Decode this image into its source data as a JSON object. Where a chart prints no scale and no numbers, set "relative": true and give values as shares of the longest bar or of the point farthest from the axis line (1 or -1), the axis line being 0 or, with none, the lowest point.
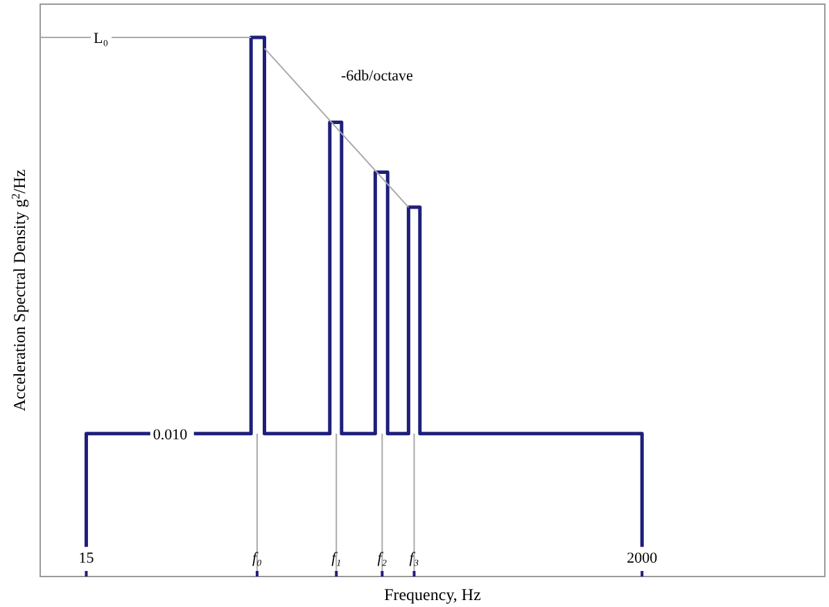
{
  "chart_data": {
    "type": "line",
    "relative": true,
    "log": "x",
    "xlabel": "Frequency, Hz",
    "ylabel": "Acceleration Spectral Density g$^{2}$/Hz",
    "xlim": [
      10,
      10000
    ],
    "xticks": [
      15,
      {
        "value": 67.5,
        "label": "f₀"
      },
      {
        "value": 135.6,
        "label": "f₁"
      },
      {
        "value": 203,
        "label": "f₂"
      },
      {
        "value": 269,
        "label": "f₃"
      },
      2000
    ],
    "series": [
      {
        "color": "#1f1f7a",
        "x": [
          15,
          15,
          64,
          64,
          72,
          72,
          128,
          128,
          142,
          142,
          191,
          191,
          213,
          213,
          256,
          256,
          283,
          283,
          2000,
          2000
        ],
        "values": [
          0.055,
          0.265,
          0.265,
          1,
          1,
          0.265,
          0.265,
          0.8425,
          0.8425,
          0.265,
          0.265,
          0.75,
          0.75,
          0.265,
          0.265,
          0.685,
          0.685,
          0.265,
          0.265,
          0.055
        ]
      },
      {
        "color": "#aaaaaa",
        "x": [
          10,
          64
        ],
        "values": [
          1,
          1
        ]
      },
      {
        "color": "#aaaaaa",
        "x": [
          72,
          256
        ],
        "values": [
          0.98,
          0.685
        ]
      },
      {
        "color": "#aaaaaa",
        "x": [
          67.5,
          67.5
        ],
        "values": [
          0,
          0.265
        ]
      },
      {
        "color": "#aaaaaa",
        "x": [
          135.6,
          135.6
        ],
        "values": [
          0,
          0.265
        ]
      },
      {
        "color": "#aaaaaa",
        "x": [
          203,
          203
        ],
        "values": [
          0,
          0.265
        ]
      },
      {
        "color": "#aaaaaa",
        "x": [
          269,
          269
        ],
        "values": [
          0,
          0.265
        ]
      }
    ],
    "annotations": [
      {
        "text": "L₀",
        "x": 16,
        "y": 1
      },
      {
        "text": "0.010",
        "x": 27,
        "y": 0.265
      },
      "-6db/octave"
    ],
    "grid": false,
    "marker": "none",
    "line_style": "solid"
  }
}
